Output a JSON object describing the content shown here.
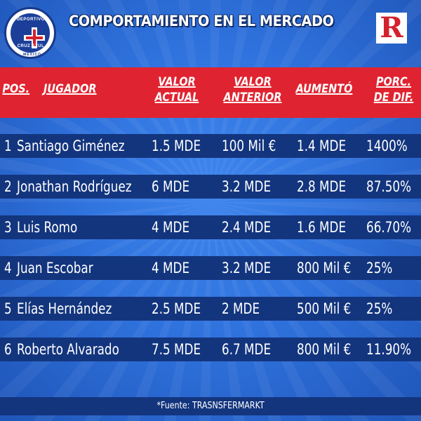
{
  "header": {
    "title": "COMPORTAMIENTO EN EL MERCADO",
    "crest": {
      "top_text": "DEPORTIVO",
      "bottom_text": "CRUZ AZUL",
      "ring_text": "MÉXICO"
    },
    "logo": "R"
  },
  "columns": {
    "pos": "POS.",
    "player": "JUGADOR",
    "current": [
      "VALOR",
      "ACTUAL"
    ],
    "previous": [
      "VALOR",
      "ANTERIOR"
    ],
    "increase": "AUMENTÓ",
    "pct": [
      "PORC.",
      "DE DIF."
    ]
  },
  "rows": [
    {
      "pos": "1",
      "name": "Santiago Giménez",
      "current": "1.5 MDE",
      "previous": "100 Mil €",
      "increase": "1.4 MDE",
      "pct": "1400%"
    },
    {
      "pos": "2",
      "name": "Jonathan Rodríguez",
      "current": "6 MDE",
      "previous": "3.2 MDE",
      "increase": "2.8 MDE",
      "pct": "87.50%"
    },
    {
      "pos": "3",
      "name": "Luis Romo",
      "current": "4 MDE",
      "previous": "2.4 MDE",
      "increase": "1.6 MDE",
      "pct": "66.70%"
    },
    {
      "pos": "4",
      "name": "Juan Escobar",
      "current": "4 MDE",
      "previous": "3.2 MDE",
      "increase": "800 Mil €",
      "pct": "25%"
    },
    {
      "pos": "5",
      "name": "Elías Hernández",
      "current": "2.5 MDE",
      "previous": "2 MDE",
      "increase": "500 Mil €",
      "pct": "25%"
    },
    {
      "pos": "6",
      "name": "Roberto Alvarado",
      "current": "7.5 MDE",
      "previous": "6.7 MDE",
      "increase": "800 Mil €",
      "pct": "11.90%"
    }
  ],
  "footer": "*Fuente: TRASNSFERMARKT",
  "colors": {
    "header_red": "#e02330",
    "row_navy": "#13357e",
    "bg_blue": "#2f72dd"
  }
}
